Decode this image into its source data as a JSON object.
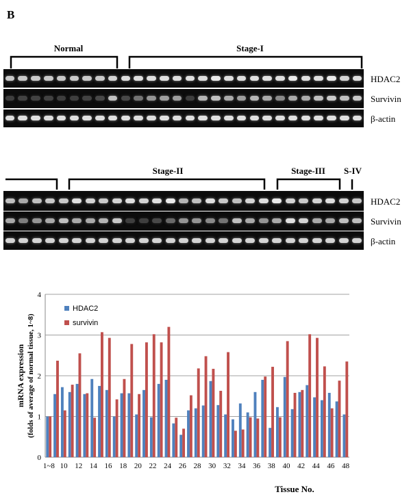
{
  "panel_letter": "B",
  "gel_top": {
    "brackets": [
      {
        "label": "Normal"
      },
      {
        "label": "Stage-I"
      }
    ],
    "rows": [
      {
        "label": "HDAC2",
        "intensity": [
          0.75,
          0.75,
          0.75,
          0.75,
          0.75,
          0.75,
          0.75,
          0.75,
          0.8,
          0.85,
          0.85,
          0.85,
          0.85,
          0.85,
          0.85,
          0.85,
          0.9,
          0.85,
          0.85,
          0.85,
          0.85,
          0.85,
          0.9,
          0.85,
          0.85,
          0.9,
          0.8,
          0.85
        ]
      },
      {
        "label": "Survivin",
        "intensity": [
          0.1,
          0.12,
          0.12,
          0.12,
          0.1,
          0.1,
          0.12,
          0.15,
          0.7,
          0.15,
          0.35,
          0.5,
          0.55,
          0.55,
          0.1,
          0.65,
          0.7,
          0.6,
          0.55,
          0.65,
          0.6,
          0.45,
          0.6,
          0.6,
          0.7,
          0.75,
          0.7,
          0.75
        ]
      },
      {
        "label": "β-actin",
        "intensity": [
          0.85,
          0.85,
          0.85,
          0.85,
          0.85,
          0.85,
          0.85,
          0.85,
          0.85,
          0.85,
          0.85,
          0.85,
          0.85,
          0.85,
          0.85,
          0.85,
          0.85,
          0.85,
          0.85,
          0.85,
          0.85,
          0.85,
          0.85,
          0.85,
          0.85,
          0.85,
          0.85,
          0.85
        ]
      }
    ]
  },
  "gel_bottom": {
    "brackets": [
      {
        "label": ""
      },
      {
        "label": "Stage-II"
      },
      {
        "label": "Stage-III"
      },
      {
        "label": "S-IV"
      }
    ],
    "rows": [
      {
        "label": "HDAC2",
        "intensity": [
          0.7,
          0.6,
          0.7,
          0.75,
          0.75,
          0.85,
          0.8,
          0.75,
          0.8,
          0.85,
          0.8,
          0.85,
          0.9,
          0.65,
          0.7,
          0.85,
          0.75,
          0.7,
          0.8,
          0.85,
          0.9,
          0.8,
          0.75,
          0.8,
          0.85,
          0.8,
          0.75
        ]
      },
      {
        "label": "Survivin",
        "intensity": [
          0.6,
          0.4,
          0.5,
          0.6,
          0.7,
          0.6,
          0.6,
          0.65,
          0.75,
          0.1,
          0.1,
          0.15,
          0.3,
          0.5,
          0.5,
          0.45,
          0.35,
          0.7,
          0.6,
          0.5,
          0.6,
          0.85,
          0.8,
          0.6,
          0.6,
          0.7,
          0.7
        ]
      },
      {
        "label": "β-actin",
        "intensity": [
          0.8,
          0.8,
          0.8,
          0.8,
          0.8,
          0.8,
          0.8,
          0.8,
          0.8,
          0.8,
          0.8,
          0.8,
          0.8,
          0.8,
          0.8,
          0.8,
          0.8,
          0.8,
          0.8,
          0.8,
          0.8,
          0.8,
          0.8,
          0.8,
          0.8,
          0.8,
          0.8
        ]
      }
    ]
  },
  "chart_data": {
    "type": "bar",
    "xlabel": "Tissue No.",
    "ylabel": "mRNA expression",
    "ylabel_sub": "(folds of average of normal tissue, 1~8)",
    "ylim": [
      0,
      4
    ],
    "yticks": [
      "0",
      "1",
      "2",
      "3",
      "4"
    ],
    "grid": true,
    "legend_position": "top-left",
    "categories": [
      "1~8",
      "9",
      "10",
      "11",
      "12",
      "13",
      "14",
      "15",
      "16",
      "17",
      "18",
      "19",
      "20",
      "21",
      "22",
      "23",
      "24",
      "25",
      "26",
      "27",
      "28",
      "29",
      "30",
      "31",
      "32",
      "33",
      "34",
      "35",
      "36",
      "37",
      "38",
      "39",
      "40",
      "41",
      "42",
      "43",
      "44",
      "45",
      "46",
      "47",
      "48"
    ],
    "xtick_labels": [
      "1~8",
      "",
      "10",
      "",
      "12",
      "",
      "14",
      "",
      "16",
      "",
      "18",
      "",
      "20",
      "",
      "22",
      "",
      "24",
      "",
      "26",
      "",
      "28",
      "",
      "30",
      "",
      "32",
      "",
      "34",
      "",
      "36",
      "",
      "38",
      "",
      "40",
      "",
      "42",
      "",
      "44",
      "",
      "46",
      "",
      "48"
    ],
    "series": [
      {
        "name": "HDAC2",
        "color": "#4f81bd",
        "values": [
          1.0,
          1.55,
          1.72,
          1.6,
          1.8,
          1.55,
          1.92,
          1.75,
          1.65,
          1.0,
          1.57,
          1.57,
          1.05,
          1.65,
          0.98,
          1.8,
          1.9,
          0.83,
          0.55,
          1.15,
          1.2,
          1.27,
          1.87,
          1.28,
          1.05,
          0.93,
          1.32,
          1.1,
          1.6,
          1.9,
          0.72,
          1.23,
          1.97,
          1.18,
          1.6,
          1.77,
          1.47,
          1.4,
          1.58,
          1.37,
          1.05
        ]
      },
      {
        "name": "survivin",
        "color": "#c0504d",
        "values": [
          1.0,
          2.37,
          1.15,
          1.78,
          2.55,
          1.57,
          0.97,
          3.07,
          2.93,
          1.42,
          1.92,
          2.78,
          1.55,
          2.82,
          3.02,
          2.82,
          3.2,
          0.97,
          0.7,
          1.52,
          2.18,
          2.48,
          2.17,
          1.63,
          2.58,
          0.65,
          0.68,
          0.98,
          0.95,
          1.98,
          2.22,
          0.98,
          2.85,
          1.58,
          1.65,
          3.02,
          2.93,
          2.23,
          1.2,
          1.88,
          2.35
        ]
      }
    ]
  }
}
